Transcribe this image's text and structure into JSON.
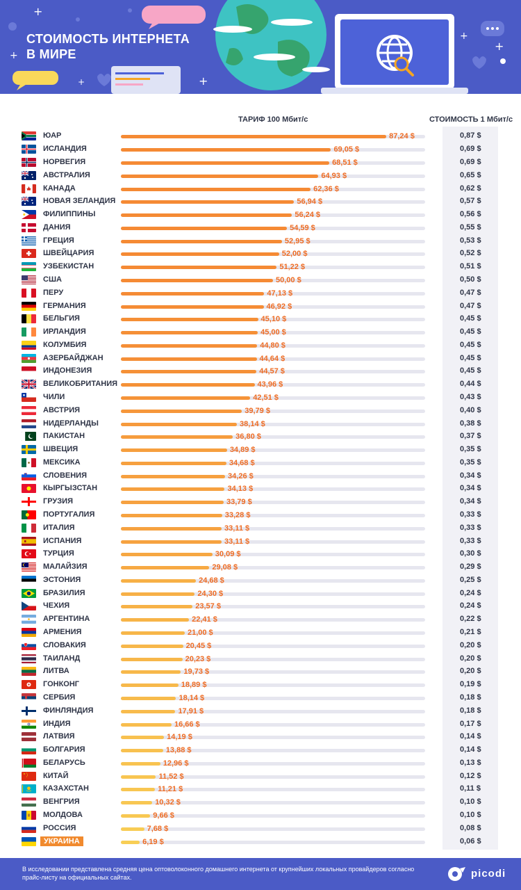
{
  "header": {
    "title_line1": "СТОИМОСТЬ ИНТЕРНЕТА",
    "title_line2": "В МИРЕ"
  },
  "columns": {
    "tariff": "ТАРИФ 100 Мбит/с",
    "cost": "СТОИМОСТЬ 1 Мбит/с"
  },
  "colors": {
    "header_bg": "#4b5bc6",
    "bar_high": "#f58a34",
    "bar_low": "#f9d85a",
    "value_text": "#ee6c23",
    "highlight": "#f18a2e"
  },
  "chart_data": {
    "type": "bar",
    "orientation": "horizontal",
    "xlim": [
      0,
      100
    ],
    "unit": "$",
    "highlight": "УКРАИНА",
    "rows": [
      {
        "country": "ЮАР",
        "flag": "za",
        "price": "87,24 $",
        "value": 87.24,
        "per_mbit": "0,87 $"
      },
      {
        "country": "ИСЛАНДИЯ",
        "flag": "is",
        "price": "69,05 $",
        "value": 69.05,
        "per_mbit": "0,69 $"
      },
      {
        "country": "НОРВЕГИЯ",
        "flag": "no",
        "price": "68,51 $",
        "value": 68.51,
        "per_mbit": "0,69 $"
      },
      {
        "country": "АВСТРАЛИЯ",
        "flag": "au",
        "price": "64,93 $",
        "value": 64.93,
        "per_mbit": "0,65 $"
      },
      {
        "country": "КАНАДА",
        "flag": "ca",
        "price": "62,36 $",
        "value": 62.36,
        "per_mbit": "0,62 $"
      },
      {
        "country": "НОВАЯ ЗЕЛАНДИЯ",
        "flag": "nz",
        "price": "56,94 $",
        "value": 56.94,
        "per_mbit": "0,57 $"
      },
      {
        "country": "ФИЛИППИНЫ",
        "flag": "ph",
        "price": "56,24 $",
        "value": 56.24,
        "per_mbit": "0,56 $"
      },
      {
        "country": "ДАНИЯ",
        "flag": "dk",
        "price": "54,59 $",
        "value": 54.59,
        "per_mbit": "0,55 $"
      },
      {
        "country": "ГРЕЦИЯ",
        "flag": "gr",
        "price": "52,95 $",
        "value": 52.95,
        "per_mbit": "0,53 $"
      },
      {
        "country": "ШВЕЙЦАРИЯ",
        "flag": "ch",
        "price": "52,00 $",
        "value": 52.0,
        "per_mbit": "0,52 $"
      },
      {
        "country": "УЗБЕКИСТАН",
        "flag": "uz",
        "price": "51,22 $",
        "value": 51.22,
        "per_mbit": "0,51 $"
      },
      {
        "country": "США",
        "flag": "us",
        "price": "50,00 $",
        "value": 50.0,
        "per_mbit": "0,50 $"
      },
      {
        "country": "ПЕРУ",
        "flag": "pe",
        "price": "47,13 $",
        "value": 47.13,
        "per_mbit": "0,47 $"
      },
      {
        "country": "ГЕРМАНИЯ",
        "flag": "de",
        "price": "46,92 $",
        "value": 46.92,
        "per_mbit": "0,47 $"
      },
      {
        "country": "БЕЛЬГИЯ",
        "flag": "be",
        "price": "45,10 $",
        "value": 45.1,
        "per_mbit": "0,45 $"
      },
      {
        "country": "ИРЛАНДИЯ",
        "flag": "ie",
        "price": "45,00 $",
        "value": 45.0,
        "per_mbit": "0,45 $"
      },
      {
        "country": "КОЛУМБИЯ",
        "flag": "co",
        "price": "44,80 $",
        "value": 44.8,
        "per_mbit": "0,45 $"
      },
      {
        "country": "АЗЕРБАЙДЖАН",
        "flag": "az",
        "price": "44,64 $",
        "value": 44.64,
        "per_mbit": "0,45 $"
      },
      {
        "country": "ИНДОНЕЗИЯ",
        "flag": "id",
        "price": "44,57 $",
        "value": 44.57,
        "per_mbit": "0,45 $"
      },
      {
        "country": "ВЕЛИКОБРИТАНИЯ",
        "flag": "gb",
        "price": "43,96 $",
        "value": 43.96,
        "per_mbit": "0,44 $"
      },
      {
        "country": "ЧИЛИ",
        "flag": "cl",
        "price": "42,51 $",
        "value": 42.51,
        "per_mbit": "0,43 $"
      },
      {
        "country": "АВСТРИЯ",
        "flag": "at",
        "price": "39,79 $",
        "value": 39.79,
        "per_mbit": "0,40 $"
      },
      {
        "country": "НИДЕРЛАНДЫ",
        "flag": "nl",
        "price": "38,14 $",
        "value": 38.14,
        "per_mbit": "0,38 $"
      },
      {
        "country": "ПАКИСТАН",
        "flag": "pk",
        "price": "36,80 $",
        "value": 36.8,
        "per_mbit": "0,37 $"
      },
      {
        "country": "ШВЕЦИЯ",
        "flag": "se",
        "price": "34,89 $",
        "value": 34.89,
        "per_mbit": "0,35 $"
      },
      {
        "country": "МЕКСИКА",
        "flag": "mx",
        "price": "34,68 $",
        "value": 34.68,
        "per_mbit": "0,35 $"
      },
      {
        "country": "СЛОВЕНИЯ",
        "flag": "si",
        "price": "34,26 $",
        "value": 34.26,
        "per_mbit": "0,34 $"
      },
      {
        "country": "КЫРГЫЗСТАН",
        "flag": "kg",
        "price": "34,13 $",
        "value": 34.13,
        "per_mbit": "0,34 $"
      },
      {
        "country": "ГРУЗИЯ",
        "flag": "ge",
        "price": "33,79 $",
        "value": 33.79,
        "per_mbit": "0,34 $"
      },
      {
        "country": "ПОРТУГАЛИЯ",
        "flag": "pt",
        "price": "33,28 $",
        "value": 33.28,
        "per_mbit": "0,33 $"
      },
      {
        "country": "ИТАЛИЯ",
        "flag": "it",
        "price": "33,11 $",
        "value": 33.11,
        "per_mbit": "0,33 $"
      },
      {
        "country": "ИСПАНИЯ",
        "flag": "es",
        "price": "33,11 $",
        "value": 33.11,
        "per_mbit": "0,33 $"
      },
      {
        "country": "ТУРЦИЯ",
        "flag": "tr",
        "price": "30,09 $",
        "value": 30.09,
        "per_mbit": "0,30 $"
      },
      {
        "country": "МАЛАЙЗИЯ",
        "flag": "my",
        "price": "29,08 $",
        "value": 29.08,
        "per_mbit": "0,29 $"
      },
      {
        "country": "ЭСТОНИЯ",
        "flag": "ee",
        "price": "24,68 $",
        "value": 24.68,
        "per_mbit": "0,25 $"
      },
      {
        "country": "БРАЗИЛИЯ",
        "flag": "br",
        "price": "24,30 $",
        "value": 24.3,
        "per_mbit": "0,24 $"
      },
      {
        "country": "ЧЕХИЯ",
        "flag": "cz",
        "price": "23,57 $",
        "value": 23.57,
        "per_mbit": "0,24 $"
      },
      {
        "country": "АРГЕНТИНА",
        "flag": "ar",
        "price": "22,41 $",
        "value": 22.41,
        "per_mbit": "0,22 $"
      },
      {
        "country": "АРМЕНИЯ",
        "flag": "am",
        "price": "21,00 $",
        "value": 21.0,
        "per_mbit": "0,21 $"
      },
      {
        "country": "СЛОВАКИЯ",
        "flag": "sk",
        "price": "20,45 $",
        "value": 20.45,
        "per_mbit": "0,20 $"
      },
      {
        "country": "ТАИЛАНД",
        "flag": "th",
        "price": "20,23 $",
        "value": 20.23,
        "per_mbit": "0,20 $"
      },
      {
        "country": "ЛИТВА",
        "flag": "lt",
        "price": "19,73 $",
        "value": 19.73,
        "per_mbit": "0,20 $"
      },
      {
        "country": "ГОНКОНГ",
        "flag": "hk",
        "price": "18,89 $",
        "value": 18.89,
        "per_mbit": "0,19 $"
      },
      {
        "country": "СЕРБИЯ",
        "flag": "rs",
        "price": "18,14 $",
        "value": 18.14,
        "per_mbit": "0,18 $"
      },
      {
        "country": "ФИНЛЯНДИЯ",
        "flag": "fi",
        "price": "17,91 $",
        "value": 17.91,
        "per_mbit": "0,18 $"
      },
      {
        "country": "ИНДИЯ",
        "flag": "in",
        "price": "16,66 $",
        "value": 16.66,
        "per_mbit": "0,17 $"
      },
      {
        "country": "ЛАТВИЯ",
        "flag": "lv",
        "price": "14,19 $",
        "value": 14.19,
        "per_mbit": "0,14 $"
      },
      {
        "country": "БОЛГАРИЯ",
        "flag": "bg",
        "price": "13,88 $",
        "value": 13.88,
        "per_mbit": "0,14 $"
      },
      {
        "country": "БЕЛАРУСЬ",
        "flag": "by",
        "price": "12,96 $",
        "value": 12.96,
        "per_mbit": "0,13 $"
      },
      {
        "country": "КИТАЙ",
        "flag": "cn",
        "price": "11,52 $",
        "value": 11.52,
        "per_mbit": "0,12 $"
      },
      {
        "country": "КАЗАХСТАН",
        "flag": "kz",
        "price": "11,21 $",
        "value": 11.21,
        "per_mbit": "0,11 $"
      },
      {
        "country": "ВЕНГРИЯ",
        "flag": "hu",
        "price": "10,32 $",
        "value": 10.32,
        "per_mbit": "0,10 $"
      },
      {
        "country": "МОЛДОВА",
        "flag": "md",
        "price": "9,66 $",
        "value": 9.66,
        "per_mbit": "0,10 $"
      },
      {
        "country": "РОССИЯ",
        "flag": "ru",
        "price": "7,68 $",
        "value": 7.68,
        "per_mbit": "0,08 $"
      },
      {
        "country": "УКРАИНА",
        "flag": "ua",
        "price": "6,19 $",
        "value": 6.19,
        "per_mbit": "0,06 $"
      }
    ]
  },
  "footer": {
    "note": "В исследовании представлена средняя цена оптоволоконного домашнего интернета от крупнейших локальных провайдеров согласно прайс-листу на официальных сайтах.",
    "logo": "picodi"
  }
}
